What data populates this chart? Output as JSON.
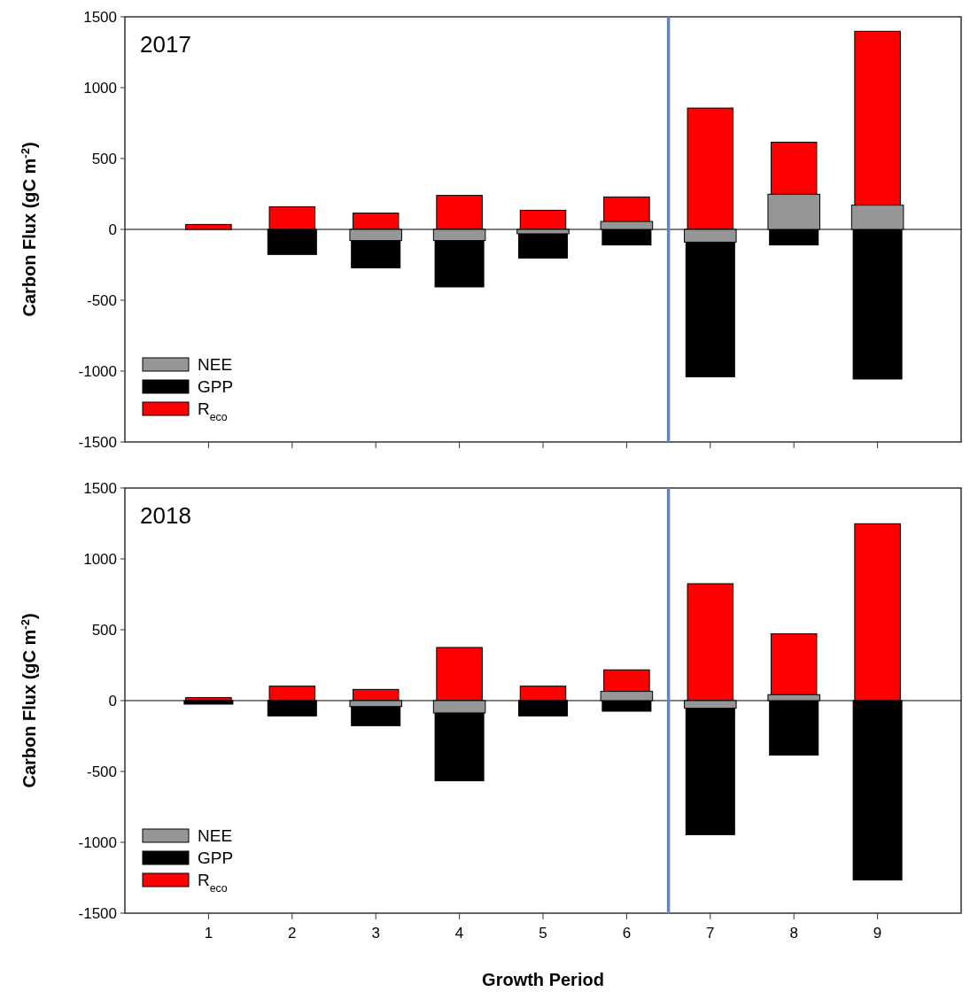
{
  "chart_data": [
    {
      "type": "bar",
      "title": "2017",
      "ylabel": "Carbon Flux (gC m$^{-2}$)",
      "x": [
        1,
        2,
        3,
        4,
        5,
        6,
        7,
        8,
        9
      ],
      "xlim": [
        0,
        10
      ],
      "xticks": [
        1,
        2,
        3,
        4,
        5,
        6,
        7,
        8,
        9
      ],
      "ylim": [
        -1500,
        1500
      ],
      "yticks": [
        -1500,
        -1000,
        -500,
        0,
        500,
        1000,
        1500
      ],
      "tick_labels": "y",
      "legend": "bottom left",
      "series": [
        {
          "name": "NEE",
          "color": "#969696",
          "values": [
            0,
            0,
            -79,
            -79,
            -31,
            56,
            -90,
            248,
            171
          ]
        },
        {
          "name": "GPP",
          "color": "#000000",
          "values": [
            0,
            -177,
            -271,
            -406,
            -202,
            -110,
            -1040,
            -110,
            -1056
          ]
        },
        {
          "name": "R$_{eco}$",
          "color": "#ff0000",
          "values": [
            35,
            160,
            115,
            240,
            135,
            229,
            856,
            615,
            1398
          ]
        }
      ],
      "ref_lines": [
        {
          "axis": "x",
          "value": 6.5,
          "color": "#5b87d0"
        }
      ]
    },
    {
      "type": "bar",
      "title": "2018",
      "ylabel": "Carbon Flux (gC m$^{-2}$)",
      "xlabel": "Growth Period",
      "x": [
        1,
        2,
        3,
        4,
        5,
        6,
        7,
        8,
        9
      ],
      "xlim": [
        0,
        10
      ],
      "xticks": [
        1,
        2,
        3,
        4,
        5,
        6,
        7,
        8,
        9
      ],
      "ylim": [
        -1500,
        1500
      ],
      "yticks": [
        -1500,
        -1000,
        -500,
        0,
        500,
        1000,
        1500
      ],
      "legend": "bottom left",
      "series": [
        {
          "name": "NEE",
          "color": "#969696",
          "values": [
            0,
            0,
            -42,
            -87,
            0,
            65,
            -54,
            42,
            0
          ]
        },
        {
          "name": "GPP",
          "color": "#000000",
          "values": [
            -25,
            -108,
            -177,
            -566,
            -108,
            -75,
            -946,
            -385,
            -1266
          ]
        },
        {
          "name": "R$_{eco}$",
          "color": "#ff0000",
          "values": [
            21,
            102,
            79,
            375,
            102,
            217,
            825,
            471,
            1248
          ]
        }
      ],
      "ref_lines": [
        {
          "axis": "x",
          "value": 6.5,
          "color": "#5b87d0"
        }
      ]
    }
  ]
}
